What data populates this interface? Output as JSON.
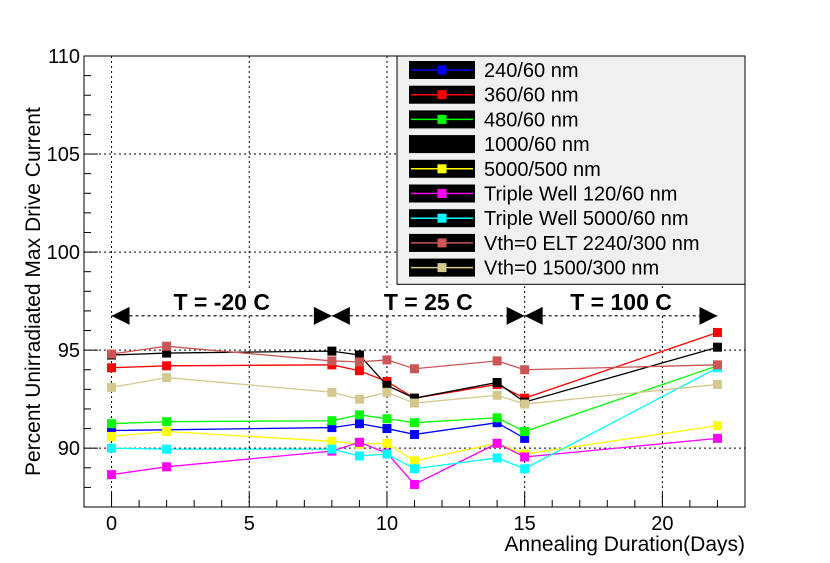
{
  "chart_data": {
    "type": "line",
    "title": "",
    "xlabel": "Annealing Duration(Days)",
    "ylabel": "Percent Unirradiated Max Drive Current",
    "xlim": [
      -1,
      23
    ],
    "ylim": [
      87,
      110
    ],
    "x_ticks": [
      "0",
      "5",
      "10",
      "15",
      "20"
    ],
    "x_tick_values": [
      0,
      5,
      10,
      15,
      20
    ],
    "y_ticks": [
      "90",
      "95",
      "100",
      "105",
      "110"
    ],
    "y_tick_values": [
      90,
      95,
      100,
      105,
      110
    ],
    "grid": true,
    "legend_position": "top-right",
    "series": [
      {
        "name": "240/60 nm",
        "color": "#0000ff",
        "x": [
          0,
          8,
          9,
          10,
          11,
          14,
          15
        ],
        "y": [
          90.9,
          91.05,
          91.25,
          91.0,
          90.7,
          91.3,
          90.5
        ]
      },
      {
        "name": "360/60 nm",
        "color": "#ff0000",
        "x": [
          0,
          2,
          8,
          9,
          10,
          11,
          14,
          15,
          22
        ],
        "y": [
          94.1,
          94.2,
          94.25,
          93.95,
          93.4,
          92.55,
          93.25,
          92.55,
          95.9
        ]
      },
      {
        "name": "480/60 nm",
        "color": "#00ff00",
        "x": [
          0,
          2,
          8,
          9,
          10,
          11,
          14,
          15,
          22
        ],
        "y": [
          91.25,
          91.35,
          91.4,
          91.7,
          91.5,
          91.3,
          91.55,
          90.85,
          94.2
        ]
      },
      {
        "name": "1000/60 nm",
        "color": "#000000",
        "x": [
          0,
          2,
          8,
          9,
          10,
          11,
          14,
          15,
          22
        ],
        "y": [
          94.75,
          94.85,
          94.95,
          94.75,
          93.2,
          92.55,
          93.35,
          92.35,
          95.15
        ]
      },
      {
        "name": "5000/500 nm",
        "color": "#ffff00",
        "x": [
          0,
          2,
          8,
          9,
          10,
          11,
          14,
          15,
          22
        ],
        "y": [
          90.6,
          90.85,
          90.35,
          90.2,
          90.25,
          89.35,
          90.25,
          89.7,
          91.15
        ]
      },
      {
        "name": "Triple Well 120/60 nm",
        "color": "#ff00ff",
        "x": [
          0,
          2,
          8,
          9,
          10,
          11,
          14,
          15,
          22
        ],
        "y": [
          88.65,
          89.05,
          89.85,
          90.3,
          89.75,
          88.15,
          90.25,
          89.55,
          90.5
        ]
      },
      {
        "name": "Triple Well 5000/60 nm",
        "color": "#00ffff",
        "x": [
          0,
          2,
          8,
          9,
          10,
          11,
          14,
          15,
          22
        ],
        "y": [
          90.0,
          89.95,
          89.95,
          89.6,
          89.7,
          88.95,
          89.5,
          88.95,
          94.1
        ]
      },
      {
        "name": "Vth=0 ELT 2240/300 nm",
        "color": "#cc5555",
        "x": [
          0,
          2,
          8,
          9,
          10,
          11,
          14,
          15,
          22
        ],
        "y": [
          94.8,
          95.2,
          94.45,
          94.4,
          94.5,
          94.05,
          94.45,
          94.0,
          94.25
        ]
      },
      {
        "name": "Vth=0 1500/300 nm",
        "color": "#d4c88e",
        "x": [
          0,
          2,
          8,
          9,
          10,
          11,
          14,
          15,
          22
        ],
        "y": [
          93.1,
          93.6,
          92.85,
          92.5,
          92.85,
          92.3,
          92.7,
          92.25,
          93.25
        ]
      }
    ],
    "annotations": [
      {
        "text": "T = -20 C",
        "x_start": 0,
        "x_end": 8,
        "y": 96.75
      },
      {
        "text": "T = 25 C",
        "x_start": 8,
        "x_end": 15,
        "y": 96.75
      },
      {
        "text": "T = 100 C",
        "x_start": 15,
        "x_end": 22,
        "y": 96.75
      }
    ]
  }
}
